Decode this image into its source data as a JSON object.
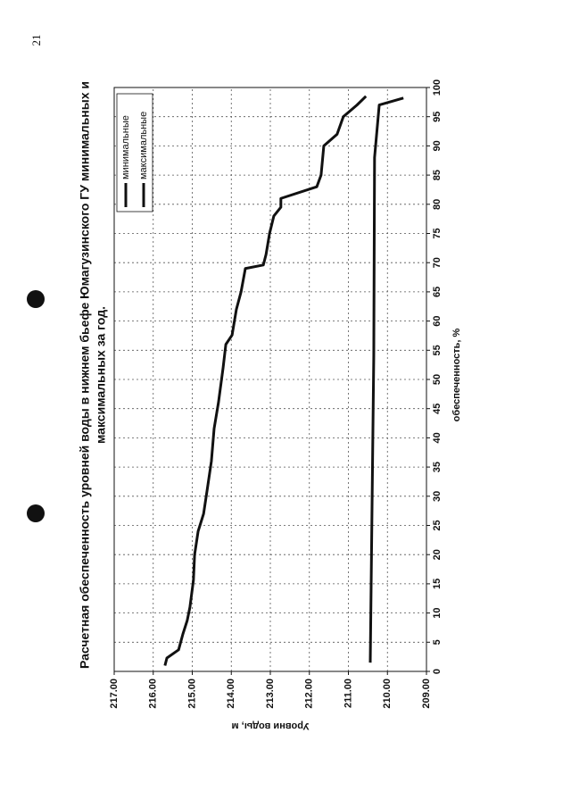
{
  "page_number": "21",
  "chart_data": {
    "type": "line",
    "title": [
      "Расчетная обеспеченность уровней воды в нижнем бьефе Юмагузинского ГУ минимальных и",
      "максимальных за год."
    ],
    "x_label": "обеспеченность, %",
    "y_label": "Уровни воды, м",
    "xlim": [
      0,
      100
    ],
    "xticks": [
      0,
      5,
      10,
      15,
      20,
      25,
      30,
      35,
      40,
      45,
      50,
      55,
      60,
      65,
      70,
      75,
      80,
      85,
      90,
      95,
      100
    ],
    "ylim": [
      209,
      217
    ],
    "yticks": [
      {
        "value": 209,
        "label": "209.00"
      },
      {
        "value": 210,
        "label": "210.00"
      },
      {
        "value": 211,
        "label": "211.00"
      },
      {
        "value": 212,
        "label": "212.00"
      },
      {
        "value": 213,
        "label": "213.00"
      },
      {
        "value": 214,
        "label": "214.00"
      },
      {
        "value": 215,
        "label": "215.00"
      },
      {
        "value": 216,
        "label": "216.00"
      },
      {
        "value": 217,
        "label": "217.00"
      }
    ],
    "grid": true,
    "legend": "upper right",
    "series": [
      {
        "name": "минимальные",
        "color": "#111111",
        "x": [
          1.5,
          54,
          88,
          97,
          98.2
        ],
        "values": [
          210.44,
          210.35,
          210.33,
          210.21,
          209.59
        ]
      },
      {
        "name": "максимальные",
        "color": "#111111",
        "x": [
          1,
          2.3,
          3.7,
          6.4,
          8.7,
          11,
          15.6,
          20,
          24,
          27,
          31,
          36,
          41.6,
          46,
          52,
          56,
          57.6,
          62,
          65,
          69,
          69.6,
          71.4,
          75,
          78,
          79.5,
          81,
          83,
          85,
          90,
          92,
          95,
          97,
          98.5
        ],
        "values": [
          215.7,
          215.65,
          215.35,
          215.24,
          215.13,
          215.06,
          214.97,
          214.94,
          214.85,
          214.71,
          214.62,
          214.51,
          214.44,
          214.33,
          214.21,
          214.14,
          213.98,
          213.87,
          213.75,
          213.64,
          213.18,
          213.11,
          213.02,
          212.91,
          212.73,
          212.73,
          211.81,
          211.7,
          211.63,
          211.29,
          211.13,
          210.78,
          210.55
        ]
      }
    ]
  }
}
